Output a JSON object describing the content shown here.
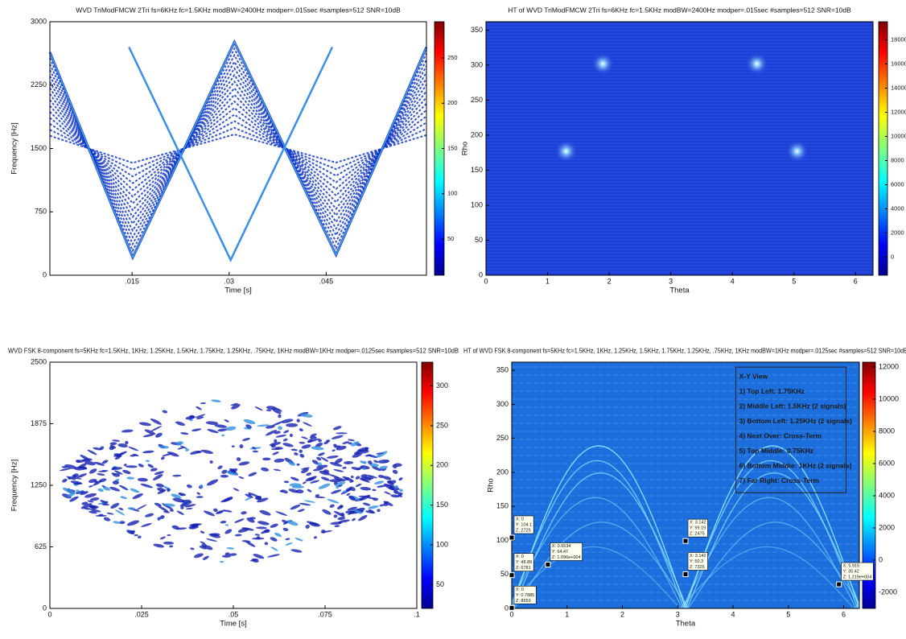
{
  "chart_data": [
    {
      "type": "heatmap",
      "title": "WVD TriModFMCW 2Tri fs=6KHz fc=1.5KHz modBW=2400Hz modper=.015sec #samples=512 SNR=10dB",
      "xlabel": "Time [s]",
      "ylabel": "Frequency [Hz]",
      "xlim": [
        0.0023,
        0.0605
      ],
      "xticks": [
        {
          "value": 0.015,
          "label": ".015"
        },
        {
          "value": 0.03,
          "label": ".03"
        },
        {
          "value": 0.045,
          "label": ".045"
        }
      ],
      "ylim": [
        0,
        3000
      ],
      "yticks": [
        0,
        750,
        1500,
        2250,
        3000
      ],
      "clim": [
        10,
        290
      ],
      "cticks": [
        50,
        100,
        150,
        200,
        250
      ]
    },
    {
      "type": "heatmap",
      "title": "HT of WVD TriModFMCW 2Tri fs=6KHz fc=1.5KHz modBW=2400Hz modper=.015sec #samples=512 SNR=10dB",
      "xlabel": "Theta",
      "ylabel": "Rho",
      "xlim": [
        0,
        6.2832
      ],
      "xticks": [
        0,
        1,
        2,
        3,
        4,
        5,
        6
      ],
      "ylim": [
        0,
        362
      ],
      "yticks": [
        0,
        50,
        100,
        150,
        200,
        250,
        300,
        350
      ],
      "clim": [
        -1500,
        19500
      ],
      "cticks": [
        0,
        2000,
        4000,
        6000,
        8000,
        10000,
        12000,
        14000,
        16000,
        18000
      ]
    },
    {
      "type": "heatmap",
      "title": "WVD FSK 8-component fs=5KHz fc=1.5KHz, 1KHz, 1.25KHz, 1.5KHz, 1.75KHz, 1.25KHz, .75KHz, 1KHz modBW=1KHz modper=.0125sec #samples=512 SNR=10dB",
      "xlabel": "Time [s]",
      "ylabel": "Frequency [Hz]",
      "xlim": [
        0,
        0.1
      ],
      "xticks": [
        0,
        {
          "value": 0.025,
          "label": ".025"
        },
        {
          "value": 0.05,
          "label": ".05"
        },
        {
          "value": 0.075,
          "label": ".075"
        },
        {
          "value": 0.1,
          "label": ".1"
        }
      ],
      "ylim": [
        0,
        2500
      ],
      "yticks": [
        0,
        625,
        1250,
        1875,
        2500
      ],
      "clim": [
        20,
        330
      ],
      "cticks": [
        50,
        100,
        150,
        200,
        250,
        300
      ]
    },
    {
      "type": "heatmap",
      "title": "HT of WVD FSK 8-component fs=5KHz fc=1.5KHz, 1KHz, 1.25KHz, 1.5KHz, 1.75KHz, 1.25KHz, .75KHz, 1KHz modBW=1KHz modper=.0125sec #samples=512 SNR=10dB",
      "xlabel": "Theta",
      "ylabel": "Rho",
      "xlim": [
        0,
        6.2832
      ],
      "xticks": [
        0,
        1,
        2,
        3,
        4,
        5,
        6
      ],
      "ylim": [
        0,
        362
      ],
      "yticks": [
        0,
        50,
        100,
        150,
        200,
        250,
        300,
        350
      ],
      "clim": [
        -3000,
        12300
      ],
      "cticks": [
        -2000,
        0,
        2000,
        4000,
        6000,
        8000,
        10000,
        12000
      ],
      "annotation": [
        "X-Y View",
        "1) Top Left: 1.75KHz",
        "2) Middle Left: 1.5KHz (2 signals)",
        "3) Bottom Left: 1.25KHz (2 signals)",
        "4) Next Over: Cross-Term",
        "5) Top Middle: 0.75KHz",
        "6) Bottom Middle: 1KHz (2 signals)",
        "7) Far Right: Cross-Term"
      ],
      "datatips": [
        {
          "x": 0,
          "y": 104.1,
          "lines": [
            "X: 0",
            "Y: 104.1",
            "Z: 2725"
          ]
        },
        {
          "x": 0,
          "y": 48.89,
          "lines": [
            "X: 0",
            "Y: 48.89",
            "Z: 6781"
          ]
        },
        {
          "x": 0,
          "y": 0.7885,
          "lines": [
            "X: 0",
            "Y: 0.7885",
            "Z: 8659"
          ]
        },
        {
          "x": 0.6534,
          "y": 64.47,
          "lines": [
            "X: 0.6534",
            "Y: 64.47",
            "Z: 1.096e+004"
          ]
        },
        {
          "x": 3.142,
          "y": 99.19,
          "lines": [
            "X: 3.142",
            "Y: 99.19",
            "Z: 2475"
          ]
        },
        {
          "x": 3.142,
          "y": 50.3,
          "lines": [
            "X: 3.142",
            "Y: 50.3",
            "Z: 7326"
          ]
        },
        {
          "x": 5.915,
          "y": 35.42,
          "lines": [
            "X: 5.915",
            "Y: 35.42",
            "Z: 1.219e+004"
          ]
        }
      ]
    }
  ]
}
